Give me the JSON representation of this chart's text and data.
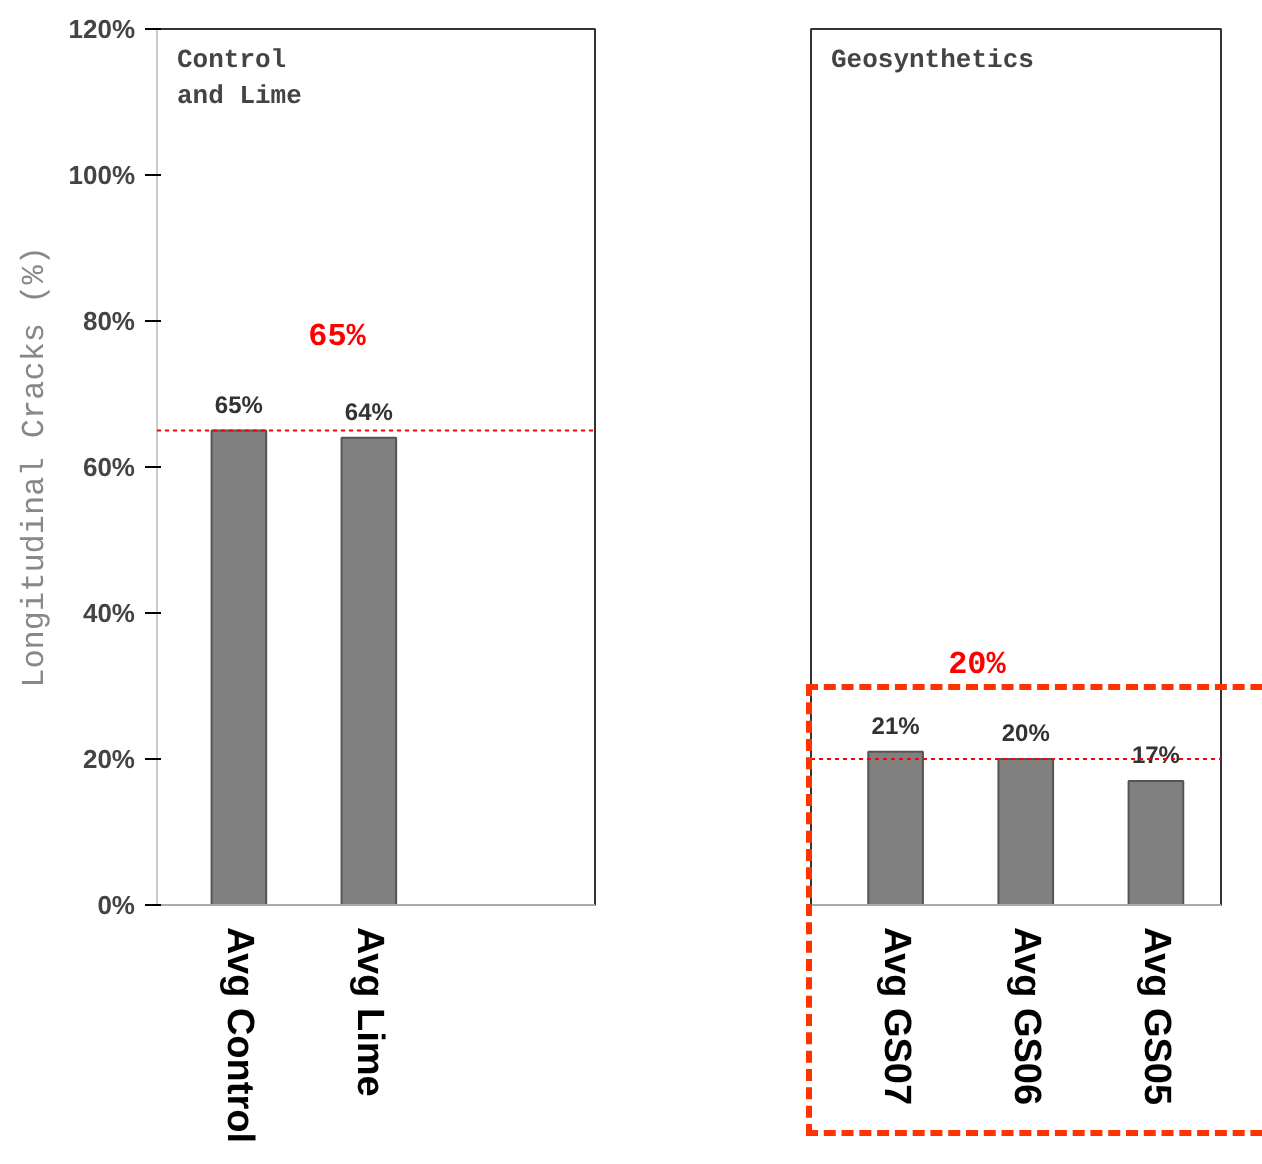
{
  "chart_data": [
    {
      "type": "bar",
      "title": "Control\nand Lime",
      "ylabel": "Longitudinal Cracks (%)",
      "categories": [
        "Avg Control",
        "Avg Lime"
      ],
      "series": [
        {
          "color": "#808080",
          "values": [
            65,
            64
          ]
        }
      ],
      "value_labels": [
        "65%",
        "64%"
      ],
      "ylim": [
        0,
        120
      ],
      "yticks": [
        {
          "value": 0,
          "label": "0%"
        },
        {
          "value": 20,
          "label": "20%"
        },
        {
          "value": 40,
          "label": "40%"
        },
        {
          "value": 60,
          "label": "60%"
        },
        {
          "value": 80,
          "label": "80%"
        },
        {
          "value": 100,
          "label": "100%"
        },
        {
          "value": 120,
          "label": "120%"
        }
      ],
      "ref_lines": [
        {
          "axis": "y",
          "value": 65,
          "label": "65%",
          "color": "#ff0000",
          "line_style": "dotted"
        }
      ],
      "grid": false
    },
    {
      "type": "bar",
      "title": "Geosynthetics",
      "categories": [
        "Avg GS07",
        "Avg GS06",
        "Avg GS05"
      ],
      "series": [
        {
          "color": "#808080",
          "values": [
            21,
            20,
            17
          ]
        }
      ],
      "value_labels": [
        "21%",
        "20%",
        "17%"
      ],
      "ylim": [
        0,
        120
      ],
      "tick_labels": "x",
      "ref_lines": [
        {
          "axis": "y",
          "value": 20,
          "label": "20%",
          "color": "#ff0000",
          "line_style": "dotted"
        }
      ],
      "grid": false
    }
  ]
}
